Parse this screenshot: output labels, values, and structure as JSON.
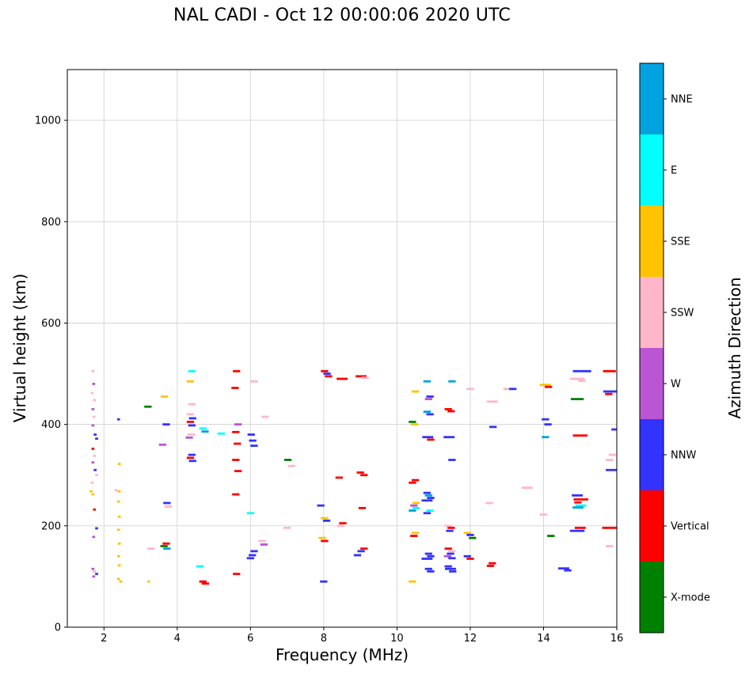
{
  "chart_data": {
    "type": "scatter",
    "title": "NAL CADI - Oct 12 00:00:06 2020 UTC",
    "xlabel": "Frequency (MHz)",
    "ylabel": "Virtual height (km)",
    "xlim": [
      1,
      16
    ],
    "ylim": [
      0,
      1100
    ],
    "xticks": [
      2,
      4,
      6,
      8,
      10,
      12,
      14,
      16
    ],
    "yticks": [
      0,
      200,
      400,
      600,
      800,
      1000
    ],
    "grid": true,
    "marker": "horizontal-dash",
    "colorbar": {
      "label": "Azimuth Direction",
      "categories_top_to_bottom": [
        {
          "name": "NNE",
          "color": "#00A3E0"
        },
        {
          "name": "E",
          "color": "#00FFFF"
        },
        {
          "name": "SSE",
          "color": "#FFC400"
        },
        {
          "name": "SSW",
          "color": "#FFB6C9"
        },
        {
          "name": "W",
          "color": "#BA55D3"
        },
        {
          "name": "NNW",
          "color": "#3333FF"
        },
        {
          "name": "Vertical",
          "color": "#FF0000"
        },
        {
          "name": "X-mode",
          "color": "#008000"
        }
      ]
    },
    "points_format": [
      "frequency_MHz",
      "virtual_height_km",
      "azimuth_direction",
      "optional_dash_width_MHz"
    ],
    "points": [
      [
        1.7,
        505,
        "SSW",
        0.08
      ],
      [
        1.72,
        480,
        "W",
        0.08
      ],
      [
        1.68,
        462,
        "SSW",
        0.08
      ],
      [
        1.74,
        448,
        "SSW",
        0.08
      ],
      [
        1.7,
        430,
        "W",
        0.08
      ],
      [
        1.73,
        415,
        "SSW",
        0.08
      ],
      [
        1.7,
        398,
        "W",
        0.08
      ],
      [
        1.76,
        380,
        "NNW",
        0.08
      ],
      [
        1.8,
        372,
        "NNW",
        0.08
      ],
      [
        1.7,
        352,
        "Vertical",
        0.08
      ],
      [
        1.74,
        338,
        "SSW",
        0.08
      ],
      [
        1.7,
        325,
        "W",
        0.08
      ],
      [
        1.76,
        310,
        "NNW",
        0.08
      ],
      [
        1.8,
        300,
        "SSW",
        0.08
      ],
      [
        1.68,
        285,
        "SSW",
        0.08
      ],
      [
        1.65,
        268,
        "SSE",
        0.08
      ],
      [
        1.7,
        262,
        "SSE",
        0.08
      ],
      [
        1.74,
        232,
        "Vertical",
        0.08
      ],
      [
        1.8,
        195,
        "NNW",
        0.08
      ],
      [
        1.72,
        178,
        "W",
        0.08
      ],
      [
        1.7,
        115,
        "W",
        0.08
      ],
      [
        1.74,
        110,
        "SSW",
        0.08
      ],
      [
        1.8,
        105,
        "NNW",
        0.08
      ],
      [
        1.72,
        100,
        "W",
        0.08
      ],
      [
        2.4,
        410,
        "NNW",
        0.08
      ],
      [
        2.42,
        322,
        "SSE",
        0.08
      ],
      [
        2.33,
        270,
        "SSW",
        0.08
      ],
      [
        2.42,
        268,
        "SSE",
        0.08
      ],
      [
        2.4,
        248,
        "SSE",
        0.08
      ],
      [
        2.42,
        218,
        "SSE",
        0.08
      ],
      [
        2.4,
        192,
        "SSE",
        0.08
      ],
      [
        2.42,
        165,
        "SSE",
        0.08
      ],
      [
        2.4,
        140,
        "SSE",
        0.08
      ],
      [
        2.42,
        122,
        "SSE",
        0.08
      ],
      [
        2.4,
        95,
        "SSE",
        0.08
      ],
      [
        2.46,
        90,
        "SSE",
        0.08
      ],
      [
        3.2,
        435,
        "X-mode"
      ],
      [
        3.28,
        155,
        "SSW"
      ],
      [
        3.22,
        90,
        "SSE",
        0.08
      ],
      [
        3.65,
        455,
        "SSE"
      ],
      [
        3.7,
        400,
        "NNW"
      ],
      [
        3.6,
        360,
        "W"
      ],
      [
        3.72,
        245,
        "NNW"
      ],
      [
        3.76,
        238,
        "SSW"
      ],
      [
        3.7,
        165,
        "Vertical"
      ],
      [
        3.64,
        160,
        "X-mode"
      ],
      [
        3.72,
        155,
        "NNE"
      ],
      [
        4.4,
        505,
        "E"
      ],
      [
        4.36,
        485,
        "SSE"
      ],
      [
        4.4,
        440,
        "SSW"
      ],
      [
        4.36,
        420,
        "SSW"
      ],
      [
        4.42,
        412,
        "NNW"
      ],
      [
        4.36,
        405,
        "Vertical"
      ],
      [
        4.4,
        398,
        "NNW"
      ],
      [
        4.38,
        380,
        "SSW"
      ],
      [
        4.33,
        374,
        "W"
      ],
      [
        4.4,
        340,
        "NNW"
      ],
      [
        4.36,
        334,
        "Vertical"
      ],
      [
        4.42,
        328,
        "NNW"
      ],
      [
        4.7,
        392,
        "E"
      ],
      [
        4.76,
        386,
        "NNE"
      ],
      [
        4.62,
        120,
        "E"
      ],
      [
        4.7,
        90,
        "Vertical"
      ],
      [
        4.77,
        86,
        "Vertical"
      ],
      [
        5.2,
        382,
        "E"
      ],
      [
        5.62,
        505,
        "Vertical"
      ],
      [
        5.58,
        472,
        "Vertical"
      ],
      [
        5.66,
        400,
        "W"
      ],
      [
        5.6,
        385,
        "Vertical"
      ],
      [
        5.64,
        362,
        "Vertical"
      ],
      [
        5.6,
        330,
        "Vertical"
      ],
      [
        5.66,
        308,
        "Vertical"
      ],
      [
        5.6,
        262,
        "Vertical"
      ],
      [
        5.62,
        105,
        "Vertical"
      ],
      [
        6.1,
        485,
        "SSW"
      ],
      [
        6.02,
        380,
        "NNW"
      ],
      [
        6.06,
        368,
        "NNW"
      ],
      [
        6.1,
        358,
        "NNW"
      ],
      [
        6.0,
        225,
        "E"
      ],
      [
        6.1,
        150,
        "NNW"
      ],
      [
        6.05,
        142,
        "NNW"
      ],
      [
        6.0,
        136,
        "NNW"
      ],
      [
        6.4,
        415,
        "SSW"
      ],
      [
        6.32,
        170,
        "SSW"
      ],
      [
        6.37,
        163,
        "W"
      ],
      [
        7.02,
        330,
        "X-mode"
      ],
      [
        7.12,
        318,
        "SSW"
      ],
      [
        7.0,
        196,
        "SSW"
      ],
      [
        8.02,
        505,
        "Vertical"
      ],
      [
        8.09,
        500,
        "NNW"
      ],
      [
        8.13,
        495,
        "Vertical"
      ],
      [
        7.92,
        240,
        "NNW"
      ],
      [
        8.02,
        215,
        "SSE"
      ],
      [
        8.08,
        210,
        "NNW"
      ],
      [
        7.96,
        176,
        "SSE"
      ],
      [
        8.02,
        170,
        "Vertical"
      ],
      [
        8.0,
        90,
        "NNW"
      ],
      [
        8.5,
        490,
        "Vertical",
        0.3
      ],
      [
        8.42,
        295,
        "Vertical"
      ],
      [
        8.52,
        205,
        "Vertical"
      ],
      [
        8.46,
        200,
        "SSW"
      ],
      [
        9.02,
        495,
        "Vertical",
        0.3
      ],
      [
        9.13,
        492,
        "SSW"
      ],
      [
        9.0,
        305,
        "Vertical"
      ],
      [
        9.1,
        300,
        "Vertical"
      ],
      [
        9.05,
        235,
        "Vertical"
      ],
      [
        9.1,
        155,
        "Vertical"
      ],
      [
        9.02,
        150,
        "NNW"
      ],
      [
        8.92,
        142,
        "NNW"
      ],
      [
        10.5,
        465,
        "SSE"
      ],
      [
        10.42,
        405,
        "X-mode"
      ],
      [
        10.48,
        400,
        "SSE"
      ],
      [
        10.5,
        290,
        "Vertical"
      ],
      [
        10.42,
        285,
        "Vertical"
      ],
      [
        10.52,
        245,
        "SSE"
      ],
      [
        10.46,
        240,
        "W"
      ],
      [
        10.52,
        235,
        "E"
      ],
      [
        10.42,
        230,
        "NNE"
      ],
      [
        10.5,
        186,
        "SSE"
      ],
      [
        10.46,
        180,
        "Vertical"
      ],
      [
        10.42,
        90,
        "SSE"
      ],
      [
        10.82,
        485,
        "NNE"
      ],
      [
        10.9,
        455,
        "NNW"
      ],
      [
        10.86,
        450,
        "W"
      ],
      [
        10.82,
        425,
        "NNE"
      ],
      [
        10.9,
        420,
        "NNW"
      ],
      [
        10.84,
        375,
        "NNW",
        0.3
      ],
      [
        10.92,
        370,
        "Vertical"
      ],
      [
        10.82,
        265,
        "NNW"
      ],
      [
        10.86,
        260,
        "NNE"
      ],
      [
        10.92,
        255,
        "NNW"
      ],
      [
        10.82,
        250,
        "NNW",
        0.3
      ],
      [
        10.9,
        230,
        "E"
      ],
      [
        10.82,
        225,
        "NNW"
      ],
      [
        10.86,
        145,
        "NNW"
      ],
      [
        10.92,
        140,
        "NNW"
      ],
      [
        10.82,
        135,
        "NNW",
        0.3
      ],
      [
        10.86,
        115,
        "NNW"
      ],
      [
        10.92,
        110,
        "NNW"
      ],
      [
        11.5,
        485,
        "NNE"
      ],
      [
        11.4,
        430,
        "Vertical"
      ],
      [
        11.48,
        426,
        "Vertical"
      ],
      [
        11.42,
        375,
        "NNW",
        0.3
      ],
      [
        11.5,
        330,
        "NNW"
      ],
      [
        11.4,
        200,
        "SSW"
      ],
      [
        11.48,
        196,
        "Vertical"
      ],
      [
        11.44,
        190,
        "NNW"
      ],
      [
        11.4,
        155,
        "Vertical"
      ],
      [
        11.5,
        150,
        "SSW"
      ],
      [
        11.46,
        145,
        "NNW"
      ],
      [
        11.38,
        140,
        "W"
      ],
      [
        11.5,
        136,
        "NNW"
      ],
      [
        11.4,
        120,
        "NNW"
      ],
      [
        11.46,
        115,
        "NNW",
        0.3
      ],
      [
        11.52,
        110,
        "NNW"
      ],
      [
        12.0,
        470,
        "SSW"
      ],
      [
        11.92,
        186,
        "SSE"
      ],
      [
        12.0,
        182,
        "NNW"
      ],
      [
        12.06,
        176,
        "X-mode"
      ],
      [
        11.92,
        140,
        "NNW"
      ],
      [
        12.0,
        135,
        "Vertical"
      ],
      [
        12.6,
        445,
        "SSW",
        0.3
      ],
      [
        12.62,
        395,
        "NNW"
      ],
      [
        12.52,
        245,
        "SSW"
      ],
      [
        12.6,
        126,
        "Vertical"
      ],
      [
        12.55,
        121,
        "Vertical"
      ],
      [
        13.05,
        470,
        "SSW",
        0.3
      ],
      [
        13.16,
        470,
        "NNW"
      ],
      [
        13.55,
        275,
        "SSW",
        0.3
      ],
      [
        14.05,
        478,
        "SSE",
        0.3
      ],
      [
        14.13,
        474,
        "Vertical"
      ],
      [
        14.05,
        410,
        "NNW"
      ],
      [
        14.12,
        400,
        "NNW"
      ],
      [
        14.05,
        375,
        "NNE"
      ],
      [
        14.0,
        222,
        "SSW"
      ],
      [
        14.2,
        180,
        "X-mode"
      ],
      [
        14.55,
        116,
        "NNW",
        0.3
      ],
      [
        14.66,
        112,
        "NNW"
      ],
      [
        15.05,
        505,
        "NNW",
        0.5
      ],
      [
        14.92,
        490,
        "SSW",
        0.4
      ],
      [
        15.05,
        486,
        "SSW"
      ],
      [
        14.92,
        450,
        "X-mode",
        0.35
      ],
      [
        15.0,
        378,
        "Vertical",
        0.4
      ],
      [
        14.92,
        260,
        "NNW",
        0.3
      ],
      [
        15.02,
        252,
        "Vertical",
        0.4
      ],
      [
        14.94,
        246,
        "Vertical"
      ],
      [
        15.02,
        240,
        "E",
        0.3
      ],
      [
        14.94,
        236,
        "NNE",
        0.3
      ],
      [
        15.0,
        196,
        "Vertical",
        0.3
      ],
      [
        14.92,
        190,
        "NNW",
        0.4
      ],
      [
        15.8,
        505,
        "Vertical",
        0.35
      ],
      [
        15.88,
        465,
        "NNW",
        0.5
      ],
      [
        15.78,
        460,
        "Vertical"
      ],
      [
        15.95,
        390,
        "NNW"
      ],
      [
        15.88,
        340,
        "SSW"
      ],
      [
        15.8,
        330,
        "SSW"
      ],
      [
        15.9,
        310,
        "NNW",
        0.4
      ],
      [
        15.85,
        196,
        "Vertical",
        0.5
      ],
      [
        15.8,
        160,
        "SSW"
      ]
    ]
  }
}
